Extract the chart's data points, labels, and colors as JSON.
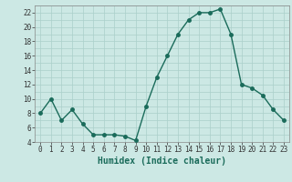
{
  "x": [
    0,
    1,
    2,
    3,
    4,
    5,
    6,
    7,
    8,
    9,
    10,
    11,
    12,
    13,
    14,
    15,
    16,
    17,
    18,
    19,
    20,
    21,
    22,
    23
  ],
  "y": [
    8,
    10,
    7,
    8.5,
    6.5,
    5,
    5,
    5,
    4.8,
    4.2,
    9,
    13,
    16,
    19,
    21,
    22,
    22,
    22.5,
    19,
    12,
    11.5,
    10.5,
    8.5,
    7
  ],
  "xlabel": "Humidex (Indice chaleur)",
  "ylim": [
    4,
    23
  ],
  "xlim": [
    -0.5,
    23.5
  ],
  "yticks": [
    4,
    6,
    8,
    10,
    12,
    14,
    16,
    18,
    20,
    22
  ],
  "xtick_labels": [
    "0",
    "1",
    "2",
    "3",
    "4",
    "5",
    "6",
    "7",
    "8",
    "9",
    "10",
    "11",
    "12",
    "13",
    "14",
    "15",
    "16",
    "17",
    "18",
    "19",
    "20",
    "21",
    "22",
    "23"
  ],
  "line_color": "#1a6b5a",
  "bg_color": "#cce8e4",
  "grid_major_color": "#aacfca",
  "grid_minor_color": "#aacfca",
  "marker_size": 2.5,
  "line_width": 1.0,
  "xlabel_fontsize": 7,
  "tick_fontsize": 5.5
}
